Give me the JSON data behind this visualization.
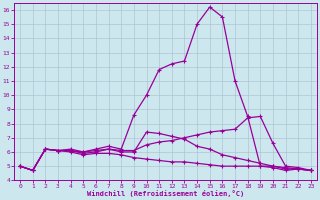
{
  "xlabel": "Windchill (Refroidissement éolien,°C)",
  "background_color": "#cce8ee",
  "line_color": "#990099",
  "x_values": [
    0,
    1,
    2,
    3,
    4,
    5,
    6,
    7,
    8,
    9,
    10,
    11,
    12,
    13,
    14,
    15,
    16,
    17,
    18,
    19,
    20,
    21,
    22,
    23
  ],
  "line1": [
    5.0,
    4.7,
    6.2,
    6.1,
    6.0,
    5.8,
    5.9,
    5.9,
    5.8,
    5.6,
    5.5,
    5.4,
    5.3,
    5.3,
    5.2,
    5.1,
    5.0,
    5.0,
    5.0,
    5.0,
    5.0,
    4.8,
    4.8,
    4.7
  ],
  "line2": [
    5.0,
    4.7,
    6.2,
    6.1,
    6.1,
    6.0,
    6.1,
    6.2,
    6.1,
    6.1,
    6.5,
    6.7,
    6.8,
    7.0,
    7.2,
    7.4,
    7.5,
    7.6,
    8.4,
    8.5,
    6.6,
    5.0,
    4.9,
    4.7
  ],
  "line3": [
    5.0,
    4.7,
    6.2,
    6.1,
    6.1,
    5.9,
    6.0,
    6.2,
    6.0,
    6.0,
    7.4,
    7.3,
    7.1,
    6.9,
    6.4,
    6.2,
    5.8,
    5.6,
    5.4,
    5.2,
    5.0,
    4.9,
    4.8,
    4.7
  ],
  "line4": [
    5.0,
    4.7,
    6.2,
    6.1,
    6.2,
    6.0,
    6.2,
    6.4,
    6.2,
    8.6,
    10.0,
    11.8,
    12.2,
    12.4,
    15.0,
    16.2,
    15.5,
    11.0,
    8.5,
    5.0,
    4.9,
    4.7,
    4.8,
    4.7
  ],
  "ylim": [
    4,
    16.5
  ],
  "xlim": [
    -0.5,
    23.5
  ],
  "yticks": [
    4,
    5,
    6,
    7,
    8,
    9,
    10,
    11,
    12,
    13,
    14,
    15,
    16
  ],
  "xticks": [
    0,
    1,
    2,
    3,
    4,
    5,
    6,
    7,
    8,
    9,
    10,
    11,
    12,
    13,
    14,
    15,
    16,
    17,
    18,
    19,
    20,
    21,
    22,
    23
  ],
  "grid_color": "#aabbcc",
  "marker": "+"
}
